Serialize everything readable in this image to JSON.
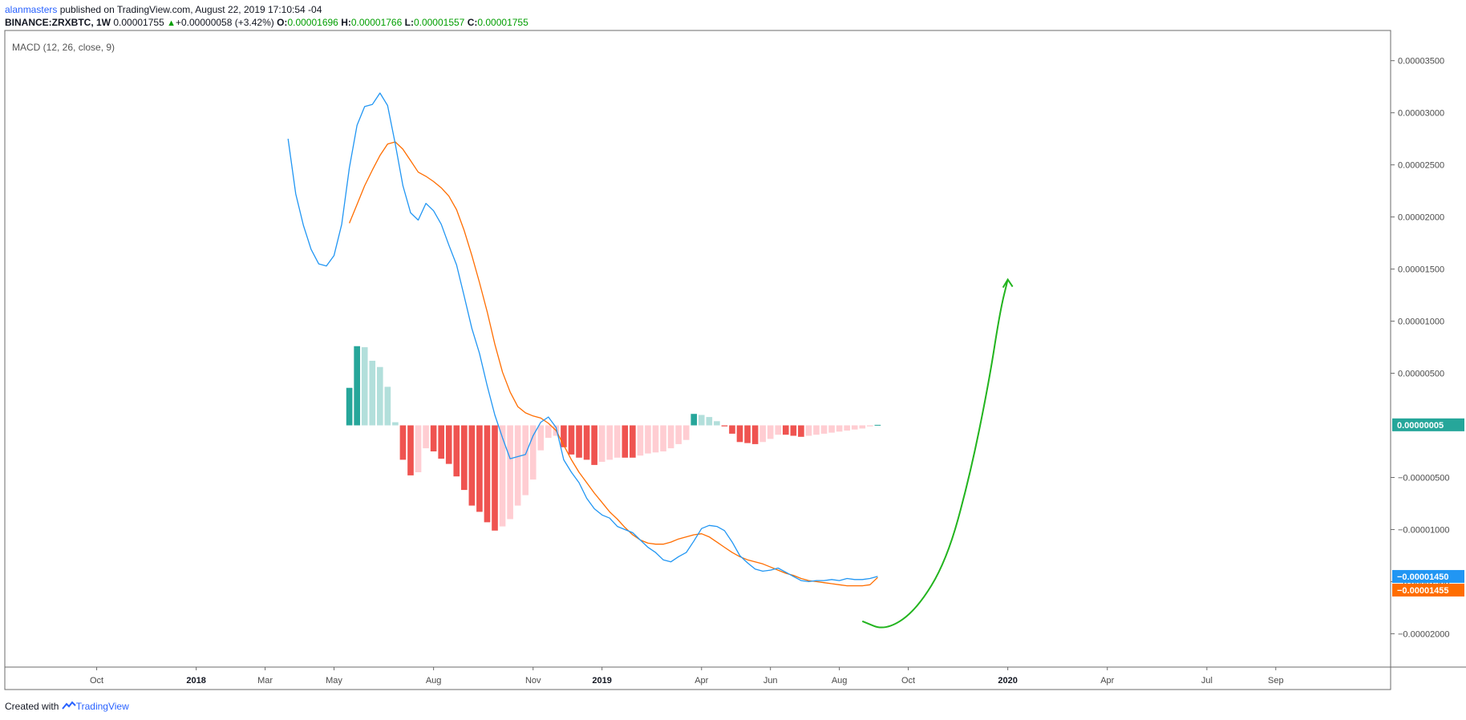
{
  "header": {
    "author": "alanmasters",
    "published": " published on TradingView.com, August 22, 2019 17:10:54 -04",
    "symbol": "BINANCE:ZRXBTC, 1W",
    "last": "0.00001755",
    "change": "+0.00000058 (+3.42%)",
    "o_label": "O:",
    "o_value": "0.00001696",
    "h_label": "H:",
    "h_value": "0.00001766",
    "l_label": "L:",
    "l_value": "0.00001557",
    "c_label": "C:",
    "c_value": "0.00001755"
  },
  "footer": {
    "created_with": "Created with",
    "brand": "TradingView"
  },
  "chart_data": {
    "type": "line",
    "title": "MACD (12, 26, close, 9)",
    "colors": {
      "macd": "#2196f3",
      "signal": "#ff6d00",
      "hist_pos_strong": "#26a69a",
      "hist_pos_weak": "#b2dfdb",
      "hist_neg_strong": "#ef5350",
      "hist_neg_weak": "#ffcdd2",
      "arrow": "#22b41e"
    },
    "x_ticks": [
      {
        "label": "Oct",
        "week": -25,
        "bold": false
      },
      {
        "label": "2018",
        "week": -12,
        "bold": true
      },
      {
        "label": "Mar",
        "week": -3,
        "bold": false
      },
      {
        "label": "May",
        "week": 6,
        "bold": false
      },
      {
        "label": "Aug",
        "week": 19,
        "bold": false
      },
      {
        "label": "Nov",
        "week": 32,
        "bold": false
      },
      {
        "label": "2019",
        "week": 41,
        "bold": true
      },
      {
        "label": "Apr",
        "week": 54,
        "bold": false
      },
      {
        "label": "Jun",
        "week": 63,
        "bold": false
      },
      {
        "label": "Aug",
        "week": 72,
        "bold": false
      },
      {
        "label": "Oct",
        "week": 81,
        "bold": false
      },
      {
        "label": "2020",
        "week": 94,
        "bold": true
      },
      {
        "label": "Apr",
        "week": 107,
        "bold": false
      },
      {
        "label": "Jul",
        "week": 120,
        "bold": false
      },
      {
        "label": "Sep",
        "week": 129,
        "bold": false
      }
    ],
    "xlim": [
      -37,
      144
    ],
    "ylim": [
      -2.32e-05,
      3.79e-05
    ],
    "y_ticks": [
      {
        "value": 3.5e-05,
        "label": "0.00003500"
      },
      {
        "value": 3e-05,
        "label": "0.00003000"
      },
      {
        "value": 2.5e-05,
        "label": "0.00002500"
      },
      {
        "value": 2e-05,
        "label": "0.00002000"
      },
      {
        "value": 1.5e-05,
        "label": "0.00001500"
      },
      {
        "value": 1e-05,
        "label": "0.00001000"
      },
      {
        "value": 5e-06,
        "label": "0.00000500"
      },
      {
        "value": -5e-06,
        "label": "−0.00000500"
      },
      {
        "value": -1e-05,
        "label": "−0.00001000"
      },
      {
        "value": -1.5e-05,
        "label": "−0.00001500"
      },
      {
        "value": -2e-05,
        "label": "−0.00002000"
      }
    ],
    "last_values": [
      {
        "name": "histogram",
        "value": 5e-08,
        "label": "0.00000005",
        "color": "#26a69a"
      },
      {
        "name": "macd",
        "value": -1.45e-05,
        "label": "−0.00001450",
        "color": "#2196f3"
      },
      {
        "name": "signal",
        "value": -1.455e-05,
        "label": "−0.00001455",
        "color": "#ff6d00"
      }
    ],
    "macd": {
      "x": [
        0,
        1,
        2,
        3,
        4,
        5,
        6,
        7,
        8,
        9,
        10,
        11,
        12,
        13,
        14,
        15,
        16,
        17,
        18,
        19,
        20,
        21,
        22,
        23,
        24,
        25,
        26,
        27,
        28,
        29,
        30,
        31,
        32,
        33,
        34,
        35,
        36,
        37,
        38,
        39,
        40,
        41,
        42,
        43,
        44,
        45,
        46,
        47,
        48,
        49,
        50,
        51,
        52,
        53,
        54,
        55,
        56,
        57,
        58,
        59,
        60,
        61,
        62,
        63,
        64,
        65,
        66,
        67,
        68,
        69,
        70,
        71,
        72,
        73,
        74,
        75,
        76,
        77
      ],
      "y": [
        2.75e-05,
        2.22e-05,
        1.92e-05,
        1.69e-05,
        1.55e-05,
        1.53e-05,
        1.63e-05,
        1.93e-05,
        2.47e-05,
        2.88e-05,
        3.06e-05,
        3.08e-05,
        3.19e-05,
        3.07e-05,
        2.7e-05,
        2.3e-05,
        2.04e-05,
        1.97e-05,
        2.13e-05,
        2.06e-05,
        1.93e-05,
        1.73e-05,
        1.54e-05,
        1.24e-05,
        9.3e-06,
        6.9e-06,
        3.8e-06,
        1e-06,
        -1.2e-06,
        -3.2e-06,
        -3e-06,
        -2.8e-06,
        -1e-06,
        3e-07,
        8e-07,
        -2e-07,
        -3.3e-06,
        -4.5e-06,
        -5.5e-06,
        -7e-06,
        -8e-06,
        -8.6e-06,
        -8.9e-06,
        -9.7e-06,
        -1e-05,
        -1.03e-05,
        -1.1e-05,
        -1.17e-05,
        -1.22e-05,
        -1.29e-05,
        -1.31e-05,
        -1.26e-05,
        -1.22e-05,
        -1.11e-05,
        -9.9e-06,
        -9.6e-06,
        -9.7e-06,
        -1.01e-05,
        -1.12e-05,
        -1.25e-05,
        -1.32e-05,
        -1.38e-05,
        -1.4e-05,
        -1.39e-05,
        -1.37e-05,
        -1.41e-05,
        -1.45e-05,
        -1.49e-05,
        -1.5e-05,
        -1.49e-05,
        -1.49e-05,
        -1.48e-05,
        -1.49e-05,
        -1.47e-05,
        -1.48e-05,
        -1.48e-05,
        -1.47e-05,
        -1.45e-05
      ]
    },
    "signal": {
      "x": [
        8,
        9,
        10,
        11,
        12,
        13,
        14,
        15,
        16,
        17,
        18,
        19,
        20,
        21,
        22,
        23,
        24,
        25,
        26,
        27,
        28,
        29,
        30,
        31,
        32,
        33,
        34,
        35,
        36,
        37,
        38,
        39,
        40,
        41,
        42,
        43,
        44,
        45,
        46,
        47,
        48,
        49,
        50,
        51,
        52,
        53,
        54,
        55,
        56,
        57,
        58,
        59,
        60,
        61,
        62,
        63,
        64,
        65,
        66,
        67,
        68,
        69,
        70,
        71,
        72,
        73,
        74,
        75,
        76,
        77
      ],
      "y": [
        1.94e-05,
        2.12e-05,
        2.3e-05,
        2.45e-05,
        2.59e-05,
        2.7e-05,
        2.72e-05,
        2.65e-05,
        2.54e-05,
        2.43e-05,
        2.39e-05,
        2.34e-05,
        2.28e-05,
        2.2e-05,
        2.07e-05,
        1.87e-05,
        1.63e-05,
        1.37e-05,
        1.09e-05,
        7.8e-06,
        5.1e-06,
        3.2e-06,
        1.8e-06,
        1.2e-06,
        9e-07,
        7e-07,
        2e-07,
        -5e-07,
        -1.9e-06,
        -3.3e-06,
        -4.5e-06,
        -5.5e-06,
        -6.5e-06,
        -7.4e-06,
        -8.3e-06,
        -9e-06,
        -9.8e-06,
        -1.05e-05,
        -1.1e-05,
        -1.13e-05,
        -1.14e-05,
        -1.14e-05,
        -1.12e-05,
        -1.09e-05,
        -1.07e-05,
        -1.05e-05,
        -1.04e-05,
        -1.07e-05,
        -1.12e-05,
        -1.17e-05,
        -1.22e-05,
        -1.26e-05,
        -1.29e-05,
        -1.31e-05,
        -1.33e-05,
        -1.36e-05,
        -1.39e-05,
        -1.42e-05,
        -1.44e-05,
        -1.47e-05,
        -1.49e-05,
        -1.5e-05,
        -1.51e-05,
        -1.52e-05,
        -1.53e-05,
        -1.54e-05,
        -1.54e-05,
        -1.54e-05,
        -1.53e-05,
        -1.46e-05
      ]
    },
    "histogram": {
      "x": [
        8,
        9,
        10,
        11,
        12,
        13,
        14,
        15,
        16,
        17,
        18,
        19,
        20,
        21,
        22,
        23,
        24,
        25,
        26,
        27,
        28,
        29,
        30,
        31,
        32,
        33,
        34,
        35,
        36,
        37,
        38,
        39,
        40,
        41,
        42,
        43,
        44,
        45,
        46,
        47,
        48,
        49,
        50,
        51,
        52,
        53,
        54,
        55,
        56,
        57,
        58,
        59,
        60,
        61,
        62,
        63,
        64,
        65,
        66,
        67,
        68,
        69,
        70,
        71,
        72,
        73,
        74,
        75,
        76,
        77
      ],
      "y": [
        3.6e-06,
        7.6e-06,
        7.5e-06,
        6.2e-06,
        5.6e-06,
        3.7e-06,
        3e-07,
        -3.3e-06,
        -4.8e-06,
        -4.5e-06,
        -2.2e-06,
        -2.5e-06,
        -3.2e-06,
        -3.7e-06,
        -4.9e-06,
        -6.2e-06,
        -7.7e-06,
        -8.3e-06,
        -9.3e-06,
        -1.01e-05,
        -9.7e-06,
        -9e-06,
        -7.7e-06,
        -6.7e-06,
        -5.2e-06,
        -2.4e-06,
        -1.2e-06,
        -1e-06,
        -2.1e-06,
        -2.8e-06,
        -3.1e-06,
        -3.3e-06,
        -3.8e-06,
        -3.5e-06,
        -3.3e-06,
        -3.1e-06,
        -3.1e-06,
        -3.1e-06,
        -2.9e-06,
        -2.7e-06,
        -2.6e-06,
        -2.5e-06,
        -2.2e-06,
        -1.8e-06,
        -1.4e-06,
        1.1e-06,
        1e-06,
        8e-07,
        4e-07,
        -1e-07,
        -8e-07,
        -1.6e-06,
        -1.7e-06,
        -1.8e-06,
        -1.6e-06,
        -1.3e-06,
        -9e-07,
        -9e-07,
        -1e-06,
        -1.1e-06,
        -1e-06,
        -9e-07,
        -8e-07,
        -7e-07,
        -6e-07,
        -5e-07,
        -4e-07,
        -3e-07,
        -1e-07,
        5e-08
      ]
    },
    "annotation": {
      "type": "arrow",
      "color": "#22b41e",
      "points": [
        {
          "week": 75,
          "value": -1.88e-05
        },
        {
          "week": 78,
          "value": -1.97e-05
        },
        {
          "week": 82,
          "value": -1.78e-05
        },
        {
          "week": 86,
          "value": -1.3e-05
        },
        {
          "week": 89,
          "value": -5e-06
        },
        {
          "week": 91.5,
          "value": 4e-06
        },
        {
          "week": 93,
          "value": 1.1e-05
        },
        {
          "week": 94,
          "value": 1.4e-05
        }
      ]
    }
  }
}
